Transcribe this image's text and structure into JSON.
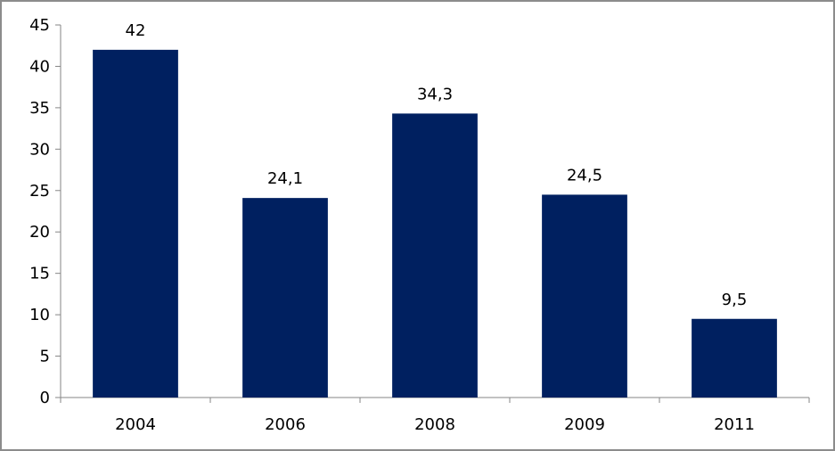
{
  "chart_data": {
    "type": "bar",
    "title": "",
    "xlabel": "",
    "ylabel": "",
    "categories": [
      "2004",
      "2006",
      "2008",
      "2009",
      "2011"
    ],
    "values": [
      42,
      24.1,
      34.3,
      24.5,
      9.5
    ],
    "data_labels": [
      "42",
      "24,1",
      "34,3",
      "24,5",
      "9,5"
    ],
    "ylim": [
      0,
      45
    ],
    "y_ticks": [
      "0",
      "5",
      "10",
      "15",
      "20",
      "25",
      "30",
      "35",
      "40",
      "45"
    ],
    "grid": false,
    "legend": "none",
    "bar_color": "#002060",
    "axis_color": "#868686"
  }
}
